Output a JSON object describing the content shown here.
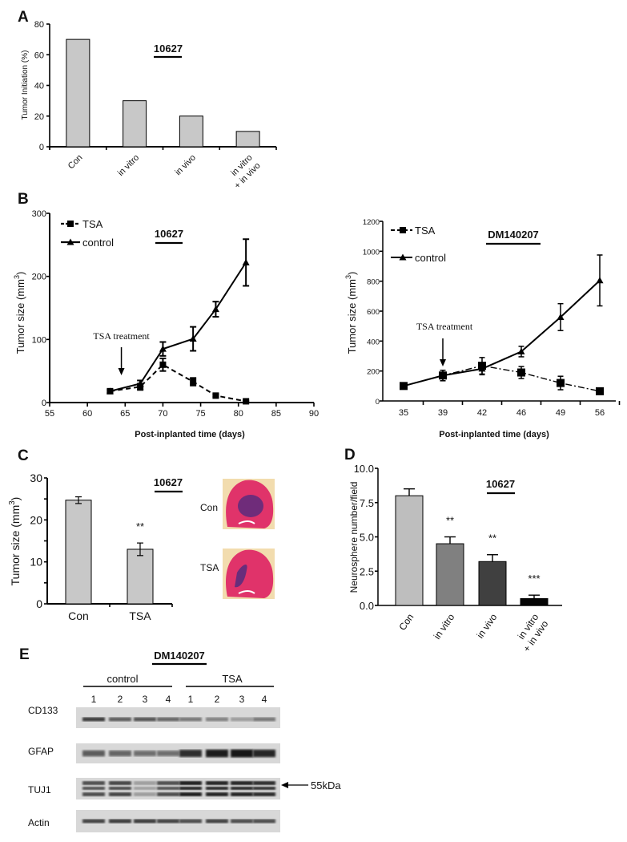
{
  "chart_data": [
    {
      "panel_label": "A",
      "type": "bar",
      "title": "10627",
      "categories": [
        "Con",
        "in vitro",
        "in vivo",
        "in vitro + in vivo"
      ],
      "category_lines": [
        [
          "Con"
        ],
        [
          "in vitro"
        ],
        [
          "in vivo"
        ],
        [
          "in vitro",
          "+ in vivo"
        ]
      ],
      "values": [
        70,
        30,
        20,
        10
      ],
      "xlabel": "",
      "ylabel": "Tumor Initiation (%)",
      "ylim": [
        0,
        80
      ],
      "yticks": [
        "0",
        "20",
        "40",
        "60",
        "80"
      ],
      "bar_color": "#c8c8c8"
    },
    {
      "panel_label": "B",
      "type": "line",
      "title": "10627",
      "xlabel": "Post-inplanted time (days)",
      "ylabel_main": "Tumor size (mm",
      "ylabel_sup": "3",
      "ylabel_end": ")",
      "xlim": [
        55,
        90
      ],
      "ylim": [
        0,
        300
      ],
      "xticks": [
        "55",
        "60",
        "65",
        "70",
        "75",
        "80",
        "85",
        "90"
      ],
      "yticks": [
        "0",
        "100",
        "200",
        "300"
      ],
      "annotation": {
        "text": "TSA treatment",
        "x": 64.5
      },
      "legend_position": "top-left",
      "series": [
        {
          "name": "TSA",
          "style": "dashed",
          "marker": "square",
          "x": [
            63,
            67,
            70,
            74,
            77,
            81
          ],
          "y": [
            18,
            25,
            60,
            33,
            11,
            2
          ],
          "err": [
            2,
            5,
            10,
            6,
            2,
            1
          ]
        },
        {
          "name": "control",
          "style": "solid",
          "marker": "triangle",
          "x": [
            63,
            67,
            70,
            74,
            77,
            81
          ],
          "y": [
            18,
            30,
            85,
            101,
            148,
            222
          ],
          "err": [
            2,
            5,
            11,
            19,
            12,
            37
          ]
        }
      ]
    },
    {
      "panel_label": "",
      "type": "line",
      "title": "DM140207",
      "xlabel": "Post-inplanted time (days)",
      "ylabel_main": "Tumor size (mm",
      "ylabel_sup": "3",
      "ylabel_end": ")",
      "categories": [
        "35",
        "39",
        "42",
        "46",
        "49",
        "56"
      ],
      "ylim": [
        0,
        1200
      ],
      "yticks": [
        "0",
        "200",
        "400",
        "600",
        "800",
        "1000",
        "1200"
      ],
      "annotation": {
        "text": "TSA treatment",
        "category": "39"
      },
      "legend_position": "top-left",
      "series": [
        {
          "name": "TSA",
          "style": "dash-dot",
          "marker": "square",
          "y": [
            100,
            170,
            235,
            190,
            120,
            65
          ],
          "err": [
            15,
            35,
            55,
            40,
            45,
            10
          ]
        },
        {
          "name": "control",
          "style": "solid",
          "marker": "triangle",
          "y": [
            100,
            170,
            215,
            330,
            560,
            805
          ],
          "err": [
            15,
            35,
            40,
            35,
            90,
            170
          ]
        }
      ]
    },
    {
      "panel_label": "C",
      "type": "bar",
      "title": "10627",
      "categories": [
        "Con",
        "TSA"
      ],
      "values": [
        24.7,
        13.0
      ],
      "err": [
        0.8,
        1.5
      ],
      "significance": [
        "",
        "**"
      ],
      "ylabel_main": "Tumor size (mm",
      "ylabel_sup": "3",
      "ylabel_end": ")",
      "ylim": [
        0,
        30
      ],
      "yticks": [
        "0",
        "10",
        "20",
        "30"
      ],
      "bar_color": "#c8c8c8",
      "image_labels": [
        "Con",
        "TSA"
      ]
    },
    {
      "panel_label": "D",
      "type": "bar",
      "title": "10627",
      "categories": [
        "Con",
        "in vitro",
        "in vivo",
        "in vitro + in vivo"
      ],
      "category_lines": [
        [
          "Con"
        ],
        [
          "in vitro"
        ],
        [
          "in vivo"
        ],
        [
          "in vitro",
          "+ in vivo"
        ]
      ],
      "values": [
        8.0,
        4.5,
        3.2,
        0.5
      ],
      "err": [
        0.5,
        0.5,
        0.5,
        0.25
      ],
      "significance": [
        "",
        "**",
        "**",
        "***"
      ],
      "ylabel": "Neurosphere number/field",
      "ylim": [
        0,
        10
      ],
      "yticks": [
        "0.0",
        "2.5",
        "5.0",
        "7.5",
        "10.0"
      ],
      "bar_colors": [
        "#bebebe",
        "#808080",
        "#404040",
        "#050505"
      ]
    },
    {
      "panel_label": "E",
      "type": "blot",
      "title": "DM140207",
      "groups": [
        {
          "label": "control",
          "lanes": [
            "1",
            "2",
            "3",
            "4"
          ]
        },
        {
          "label": "TSA",
          "lanes": [
            "1",
            "2",
            "3",
            "4"
          ]
        }
      ],
      "rows": [
        {
          "label": "CD133",
          "intensity": [
            0.8,
            0.6,
            0.65,
            0.55,
            0.45,
            0.4,
            0.25,
            0.45
          ]
        },
        {
          "label": "GFAP",
          "intensity": [
            0.6,
            0.55,
            0.5,
            0.5,
            0.85,
            0.95,
            1.0,
            0.9
          ]
        },
        {
          "label": "TUJ1",
          "intensity": [
            0.7,
            0.75,
            0.25,
            0.7,
            1.0,
            0.95,
            0.95,
            0.9
          ]
        },
        {
          "label": "Actin",
          "intensity": [
            0.75,
            0.8,
            0.8,
            0.75,
            0.7,
            0.75,
            0.7,
            0.7
          ]
        }
      ],
      "marker": {
        "label": "55kDa",
        "row": "TUJ1"
      }
    }
  ]
}
